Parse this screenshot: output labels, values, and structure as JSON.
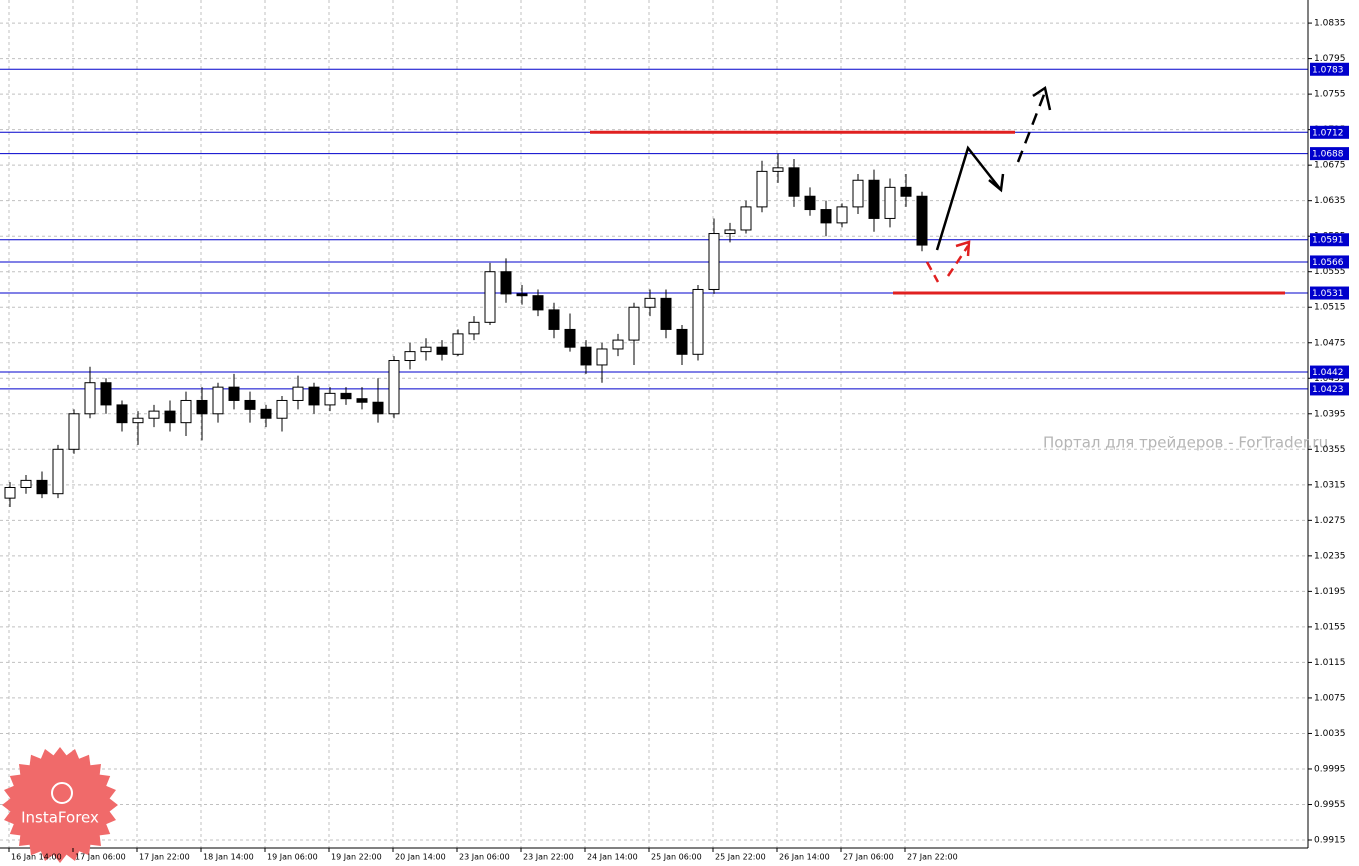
{
  "chart_data": {
    "type": "candlestick",
    "categories": [
      "16 Jan 14:00",
      null,
      null,
      null,
      "17 Jan 06:00",
      null,
      null,
      null,
      "17 Jan 22:00",
      null,
      null,
      null,
      "18 Jan 14:00",
      null,
      null,
      null,
      "19 Jan 06:00",
      null,
      null,
      null,
      "19 Jan 22:00",
      null,
      null,
      null,
      "20 Jan 14:00",
      null,
      null,
      null,
      "23 Jan 06:00",
      null,
      null,
      null,
      "23 Jan 22:00",
      null,
      null,
      null,
      "24 Jan 14:00",
      null,
      null,
      null,
      "25 Jan 06:00",
      null,
      null,
      null,
      "25 Jan 22:00",
      null,
      null,
      null,
      "26 Jan 14:00",
      null,
      null,
      null,
      "27 Jan 06:00",
      null,
      null,
      null,
      "27 Jan 22:00",
      null
    ],
    "open": [
      1.03,
      1.0312,
      1.032,
      1.0305,
      1.0355,
      1.0395,
      1.043,
      1.0405,
      1.0385,
      1.039,
      1.0398,
      1.0385,
      1.041,
      1.0395,
      1.0425,
      1.041,
      1.04,
      1.039,
      1.041,
      1.0425,
      1.0405,
      1.0418,
      1.0412,
      1.0408,
      1.0395,
      1.0455,
      1.0465,
      1.047,
      1.0462,
      1.0485,
      1.0498,
      1.0555,
      1.053,
      1.0528,
      1.0512,
      1.049,
      1.047,
      1.045,
      1.0468,
      1.0478,
      1.0515,
      1.0525,
      1.049,
      1.0462,
      1.0535,
      1.0598,
      1.0602,
      1.0628,
      1.0668,
      1.0672,
      1.064,
      1.0625,
      1.061,
      1.0628,
      1.0658,
      1.0615,
      1.065,
      1.064
    ],
    "high": [
      1.0318,
      1.0326,
      1.033,
      1.036,
      1.04,
      1.0448,
      1.0435,
      1.041,
      1.0398,
      1.0405,
      1.041,
      1.042,
      1.0425,
      1.043,
      1.044,
      1.042,
      1.0405,
      1.0415,
      1.0438,
      1.043,
      1.0425,
      1.0425,
      1.0425,
      1.0435,
      1.046,
      1.0475,
      1.048,
      1.0478,
      1.049,
      1.0505,
      1.0565,
      1.057,
      1.054,
      1.0535,
      1.052,
      1.0508,
      1.0478,
      1.0475,
      1.0485,
      1.052,
      1.0535,
      1.0535,
      1.0495,
      1.054,
      1.0615,
      1.061,
      1.0635,
      1.068,
      1.0688,
      1.0682,
      1.065,
      1.0635,
      1.0632,
      1.0665,
      1.067,
      1.066,
      1.0665,
      1.0645
    ],
    "low": [
      1.029,
      1.0305,
      1.03,
      1.03,
      1.035,
      1.039,
      1.0395,
      1.0375,
      1.036,
      1.038,
      1.0375,
      1.037,
      1.0365,
      1.0385,
      1.04,
      1.0385,
      1.038,
      1.0375,
      1.04,
      1.0395,
      1.0398,
      1.0405,
      1.04,
      1.0385,
      1.039,
      1.0445,
      1.0455,
      1.0455,
      1.046,
      1.0478,
      1.0495,
      1.052,
      1.0518,
      1.0505,
      1.048,
      1.0465,
      1.044,
      1.043,
      1.046,
      1.045,
      1.0505,
      1.048,
      1.045,
      1.0455,
      1.053,
      1.0588,
      1.0598,
      1.0622,
      1.0655,
      1.0628,
      1.0618,
      1.0595,
      1.0605,
      1.062,
      1.06,
      1.0605,
      1.0628,
      1.0578
    ],
    "close": [
      1.0312,
      1.032,
      1.0305,
      1.0355,
      1.0395,
      1.043,
      1.0405,
      1.0385,
      1.039,
      1.0398,
      1.0385,
      1.041,
      1.0395,
      1.0425,
      1.041,
      1.04,
      1.039,
      1.041,
      1.0425,
      1.0405,
      1.0418,
      1.0412,
      1.0408,
      1.0395,
      1.0455,
      1.0465,
      1.047,
      1.0462,
      1.0485,
      1.0498,
      1.0555,
      1.053,
      1.0528,
      1.0512,
      1.049,
      1.047,
      1.045,
      1.0468,
      1.0478,
      1.0515,
      1.0525,
      1.049,
      1.0462,
      1.0535,
      1.0598,
      1.0602,
      1.0628,
      1.0668,
      1.0672,
      1.064,
      1.0625,
      1.061,
      1.0628,
      1.0658,
      1.0615,
      1.065,
      1.064,
      1.0585
    ],
    "up_color": "#ffffff",
    "down_color": "#000000",
    "ylim": [
      0.9906,
      1.0861
    ],
    "yticks": [
      1.0835,
      1.0795,
      1.0755,
      1.0715,
      1.0675,
      1.0635,
      1.0595,
      1.0555,
      1.0515,
      1.0475,
      1.0435,
      1.0395,
      1.0355,
      1.0315,
      1.0275,
      1.0235,
      1.0195,
      1.0155,
      1.0115,
      1.0075,
      1.0035,
      0.9995,
      0.9955,
      0.9915
    ],
    "grid": true,
    "levels": [
      1.0783,
      1.0712,
      1.0688,
      1.0591,
      1.0566,
      1.0531,
      1.0442,
      1.0423
    ],
    "level_color": "#0000cc",
    "targets": [
      1.0712,
      1.0531
    ],
    "target_color": "#e02020",
    "watermark": "Портал для трейдеров - ForTrader.ru",
    "logo": "InstaForex"
  }
}
